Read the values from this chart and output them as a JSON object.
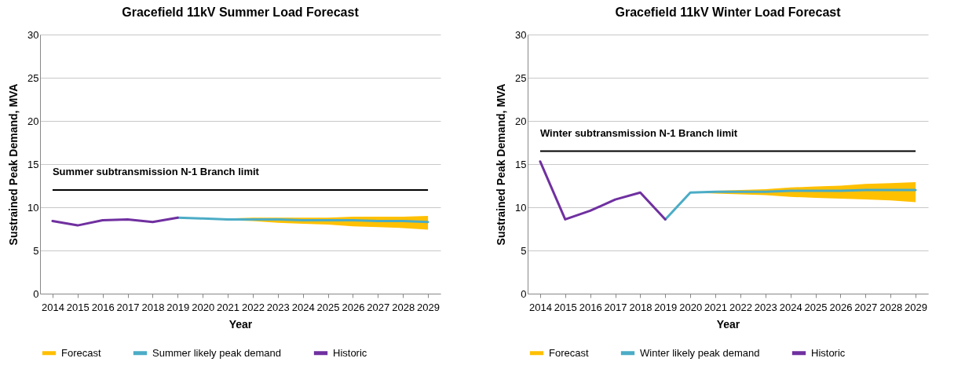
{
  "chart_data": [
    {
      "type": "line",
      "title": "Gracefield 11kV Summer Load Forecast",
      "xlabel": "Year",
      "ylabel": "Sustrained Peak Demand, MVA",
      "categories": [
        "2014",
        "2015",
        "2016",
        "2017",
        "2018",
        "2019",
        "2020",
        "2021",
        "2022",
        "2023",
        "2024",
        "2025",
        "2026",
        "2027",
        "2028",
        "2029"
      ],
      "ylim": [
        0,
        30
      ],
      "yticks": [
        0,
        5,
        10,
        15,
        20,
        25,
        30
      ],
      "grid": "y",
      "legend": "bottom",
      "series": [
        {
          "name": "Forecast",
          "type": "area",
          "color": "#ffc000",
          "values": [
            null,
            null,
            null,
            null,
            null,
            null,
            null,
            null,
            null,
            null,
            null,
            null,
            null,
            null,
            null,
            null
          ]
        },
        {
          "name": "Summer likely peak demand",
          "type": "line",
          "color": "#4bacc6",
          "values": [
            null,
            null,
            null,
            null,
            null,
            8.8,
            8.7,
            8.6,
            8.6,
            8.6,
            8.5,
            8.5,
            8.5,
            8.4,
            8.4,
            8.3
          ],
          "lower": [
            null,
            null,
            null,
            null,
            null,
            null,
            8.7,
            8.5,
            8.4,
            8.2,
            8.1,
            8.0,
            7.8,
            7.7,
            7.6,
            7.4
          ],
          "upper": [
            null,
            null,
            null,
            null,
            null,
            null,
            8.7,
            8.7,
            8.8,
            8.8,
            8.8,
            8.8,
            8.9,
            8.9,
            8.9,
            9.0
          ]
        },
        {
          "name": "Historic",
          "type": "line",
          "color": "#7030a0",
          "values": [
            8.4,
            7.9,
            8.5,
            8.6,
            8.3,
            8.8,
            null,
            null,
            null,
            null,
            null,
            null,
            null,
            null,
            null,
            null
          ]
        }
      ],
      "ref_lines": [
        {
          "axis": "y",
          "value": 12,
          "label": "Summer subtransmission  N-1 Branch limit",
          "color": "#000000"
        }
      ]
    },
    {
      "type": "line",
      "title": "Gracefield 11kV Winter Load Forecast",
      "xlabel": "Year",
      "ylabel": "Sustrained Peak Demand, MVA",
      "categories": [
        "2014",
        "2015",
        "2016",
        "2017",
        "2018",
        "2019",
        "2020",
        "2021",
        "2022",
        "2023",
        "2024",
        "2025",
        "2026",
        "2027",
        "2028",
        "2029"
      ],
      "ylim": [
        0,
        30
      ],
      "yticks": [
        0,
        5,
        10,
        15,
        20,
        25,
        30
      ],
      "grid": "y",
      "legend": "bottom",
      "series": [
        {
          "name": "Forecast",
          "type": "area",
          "color": "#ffc000",
          "values": [
            null,
            null,
            null,
            null,
            null,
            null,
            null,
            null,
            null,
            null,
            null,
            null,
            null,
            null,
            null,
            null
          ]
        },
        {
          "name": "Winter likely peak demand",
          "type": "line",
          "color": "#4bacc6",
          "values": [
            null,
            null,
            null,
            null,
            null,
            8.6,
            11.7,
            11.8,
            11.8,
            11.8,
            11.9,
            11.9,
            11.9,
            12.0,
            12.0,
            12.0
          ],
          "lower": [
            null,
            null,
            null,
            null,
            null,
            null,
            11.7,
            11.6,
            11.5,
            11.4,
            11.2,
            11.1,
            11.0,
            10.9,
            10.8,
            10.6
          ],
          "upper": [
            null,
            null,
            null,
            null,
            null,
            null,
            11.7,
            11.9,
            12.0,
            12.1,
            12.3,
            12.4,
            12.5,
            12.7,
            12.8,
            12.9
          ]
        },
        {
          "name": "Historic",
          "type": "line",
          "color": "#7030a0",
          "values": [
            15.3,
            8.6,
            9.6,
            10.9,
            11.7,
            8.6,
            null,
            null,
            null,
            null,
            null,
            null,
            null,
            null,
            null,
            null
          ]
        }
      ],
      "ref_lines": [
        {
          "axis": "y",
          "value": 16.5,
          "label": "Winter subtransmission N-1 Branch limit",
          "color": "#000000"
        }
      ]
    }
  ]
}
